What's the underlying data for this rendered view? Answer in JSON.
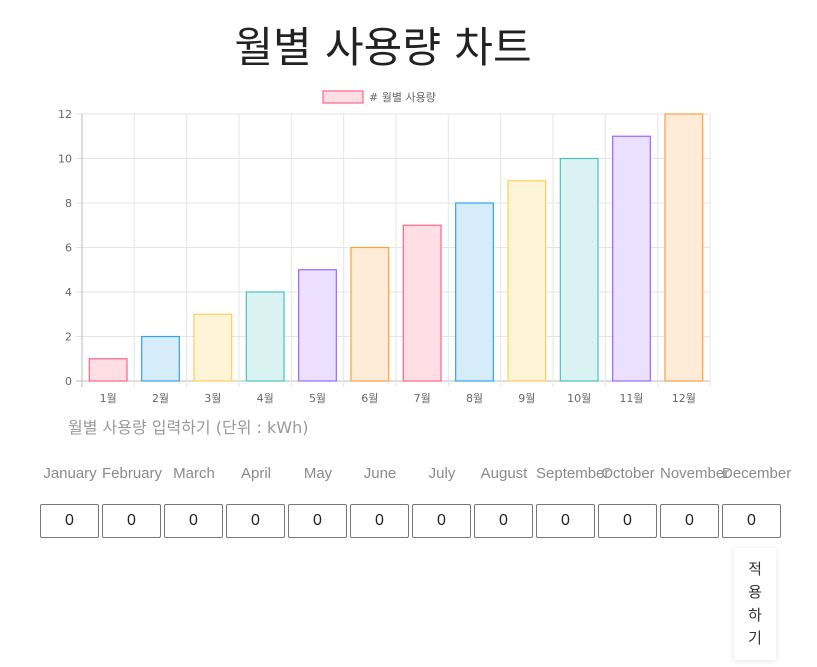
{
  "title": "월별 사용량 차트",
  "chart_data": {
    "type": "bar",
    "categories": [
      "1월",
      "2월",
      "3월",
      "4월",
      "5월",
      "6월",
      "7월",
      "8월",
      "9월",
      "10월",
      "11월",
      "12월"
    ],
    "series": [
      {
        "name": "# 월별 사용량",
        "values": [
          1,
          2,
          3,
          4,
          5,
          6,
          7,
          8,
          9,
          10,
          11,
          12
        ]
      }
    ],
    "ylim": [
      0,
      12
    ],
    "yticks": [
      0,
      2,
      4,
      6,
      8,
      10,
      12
    ],
    "grid": true,
    "legend": "top-center",
    "bar_colors": [
      "#ff6384",
      "#36a2eb",
      "#ffce56",
      "#4bc0c0",
      "#9966ff",
      "#ff9f40",
      "#ff6384",
      "#36a2eb",
      "#ffce56",
      "#4bc0c0",
      "#9966ff",
      "#ff9f40"
    ],
    "bar_fills": [
      "#ffdee5",
      "#d6ecfb",
      "#fff4d8",
      "#daf2f2",
      "#ebe0ff",
      "#ffecd8",
      "#ffdee5",
      "#d6ecfb",
      "#fff4d8",
      "#daf2f2",
      "#ebe0ff",
      "#ffecd8"
    ]
  },
  "input_section": {
    "heading": "월별 사용량 입력하기 (단위 : kWh)",
    "months": [
      {
        "label": "January",
        "value": "0"
      },
      {
        "label": "February",
        "value": "0"
      },
      {
        "label": "March",
        "value": "0"
      },
      {
        "label": "April",
        "value": "0"
      },
      {
        "label": "May",
        "value": "0"
      },
      {
        "label": "June",
        "value": "0"
      },
      {
        "label": "July",
        "value": "0"
      },
      {
        "label": "August",
        "value": "0"
      },
      {
        "label": "September",
        "value": "0"
      },
      {
        "label": "October",
        "value": "0"
      },
      {
        "label": "November",
        "value": "0"
      },
      {
        "label": "December",
        "value": "0"
      }
    ],
    "apply_label": "적용하기"
  }
}
